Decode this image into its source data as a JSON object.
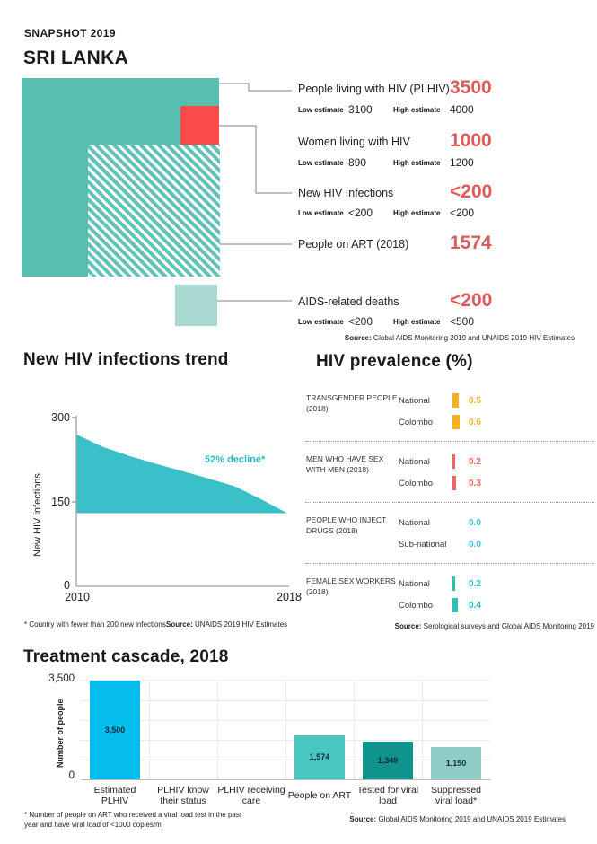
{
  "header": {
    "snapshot": "SNAPSHOT 2019",
    "country": "SRI LANKA"
  },
  "palette": {
    "teal": "#58beb1",
    "red": "#f94b4c",
    "light_teal": "#a9d8d0",
    "stat_value_red": "#de5b5b",
    "connector_gray": "#7f7f7f"
  },
  "overview_squares": {
    "plhiv": {
      "name": "people-living-with-hiv",
      "color": "#58beb1"
    },
    "new_infections": {
      "name": "new-hiv-infections",
      "color": "#f94b4c"
    },
    "on_art": {
      "name": "people-on-art",
      "stripe_color": "#63c3b7"
    },
    "aids_deaths": {
      "name": "aids-related-deaths",
      "color": "#a9d8d0"
    }
  },
  "key_stats": {
    "rows": [
      {
        "label": "People living with HIV (PLHIV)",
        "value": "3500",
        "low_label": "Low estimate",
        "low": "3100",
        "high_label": "High estimate",
        "high": "4000"
      },
      {
        "label": "Women living with HIV",
        "value": "1000",
        "low_label": "Low estimate",
        "low": "890",
        "high_label": "High estimate",
        "high": "1200"
      },
      {
        "label": "New HIV Infections",
        "value": "<200",
        "low_label": "Low estimate",
        "low": "<200",
        "high_label": "High estimate",
        "high": "<200"
      },
      {
        "label": "People on ART (2018)",
        "value": "1574"
      },
      {
        "label": "AIDS-related deaths",
        "value": "<200",
        "low_label": "Low estimate",
        "low": "<200",
        "high_label": "High estimate",
        "high": "<500"
      }
    ],
    "source_label": "Source:",
    "source": " Global AIDS Monitoring 2019 and UNAIDS 2019 HIV Estimates"
  },
  "chart_data": [
    {
      "id": "new_hiv_infections_trend",
      "type": "area",
      "title": "New HIV infections trend",
      "ylabel": "New HIV infections",
      "x": [
        2010,
        2011,
        2012,
        2013,
        2014,
        2015,
        2016,
        2017,
        2018
      ],
      "values": [
        270,
        248,
        232,
        218,
        205,
        192,
        178,
        155,
        130
      ],
      "baseline": 130,
      "ylim": [
        0,
        300
      ],
      "ytick_labels": [
        "300",
        "150",
        "0"
      ],
      "xtick_labels": [
        "2010",
        "2018"
      ],
      "annotation": "52% decline*",
      "annotation_color": "#2bb8c4",
      "fill_color": "#3bbfc8",
      "footnote": "* Country with fewer than 200 new infections.",
      "source_label": "Source:",
      "source": " UNAIDS 2019 HIV Estimates"
    },
    {
      "id": "hiv_prevalence",
      "type": "bar",
      "title": "HIV prevalence (%)",
      "unit": "%",
      "groups": [
        {
          "label": "TRANSGENDER PEOPLE (2018)",
          "color": "#f4b223",
          "rows": [
            {
              "name": "National",
              "value": 0.5
            },
            {
              "name": "Colombo",
              "value": 0.6
            }
          ]
        },
        {
          "label": "MEN WHO HAVE SEX WITH MEN (2018)",
          "color": "#f2655f",
          "rows": [
            {
              "name": "National",
              "value": 0.2
            },
            {
              "name": "Colombo",
              "value": 0.3
            }
          ]
        },
        {
          "label": "PEOPLE WHO INJECT DRUGS (2018)",
          "color": "#38c2d4",
          "rows": [
            {
              "name": "National",
              "value": 0.0
            },
            {
              "name": "Sub-national",
              "value": 0.0
            }
          ]
        },
        {
          "label": "FEMALE SEX WORKERS (2018)",
          "color": "#2cc0b6",
          "rows": [
            {
              "name": "National",
              "value": 0.2
            },
            {
              "name": "Colombo",
              "value": 0.4
            }
          ]
        }
      ],
      "source_label": "Source:",
      "source": " Serological surveys and Global AIDS Monitoring 2019"
    },
    {
      "id": "treatment_cascade",
      "type": "bar",
      "title": "Treatment cascade, 2018",
      "ylabel": "Number of people",
      "ylim": [
        0,
        3500
      ],
      "ytick_labels": [
        "3,500",
        "0"
      ],
      "categories": [
        "Estimated PLHIV",
        "PLHIV know their status",
        "PLHIV receiving care",
        "People on ART",
        "Tested for viral load",
        "Suppressed viral load*"
      ],
      "values": [
        3500,
        null,
        null,
        1574,
        1349,
        1150
      ],
      "value_labels": [
        "3,500",
        "",
        "",
        "1,574",
        "1,349",
        "1,150"
      ],
      "colors": [
        "#05bdec",
        null,
        null,
        "#4ac7c1",
        "#11938d",
        "#90cdc6"
      ],
      "grid": true,
      "footnote_line1": "* Number of people on ART who received a viral load test in the past",
      "footnote_line2": "year and have viral load of <1000 copies/ml",
      "source_label": "Source:",
      "source": " Global AIDS Monitoring 2019 and UNAIDS 2019 Estimates"
    }
  ]
}
